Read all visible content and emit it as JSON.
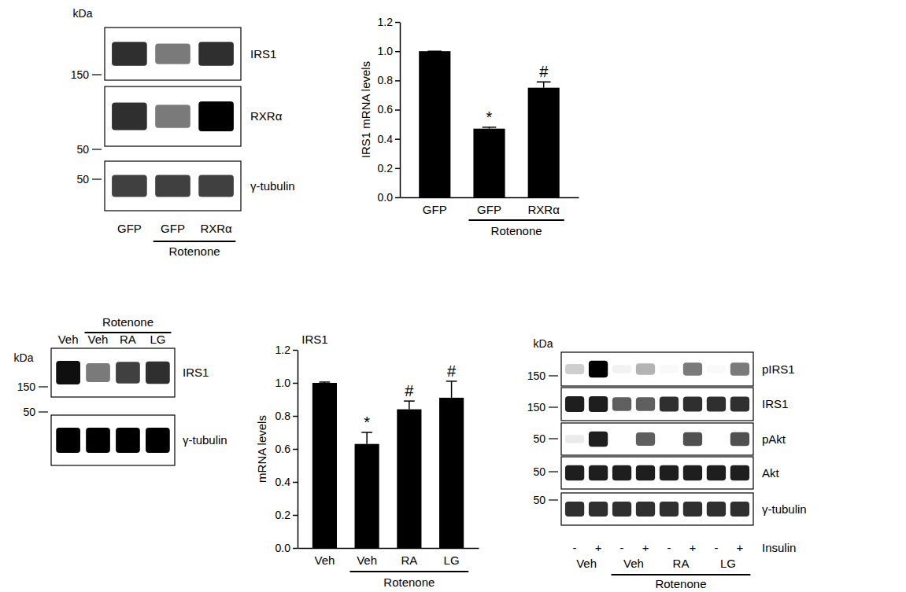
{
  "chart_data": [
    {
      "type": "bar",
      "y_label": "IRS1 mRNA levels",
      "categories": [
        "GFP",
        "GFP",
        "RXRα"
      ],
      "values": [
        1.0,
        0.47,
        0.75
      ],
      "errors": [
        0,
        0.01,
        0.04
      ],
      "color": "#000000",
      "ylim": [
        0,
        1.2
      ],
      "yticks": [
        {
          "value": 0,
          "label": "0.0"
        },
        0.2,
        0.4,
        0.6,
        0.8,
        {
          "value": 1,
          "label": "1.0"
        },
        1.2
      ],
      "annotations": [
        {
          "index": 1,
          "text": "*"
        },
        {
          "index": 2,
          "text": "#"
        }
      ],
      "groups": [
        {
          "label": "Rotenone",
          "start": 1,
          "end": 2
        }
      ]
    },
    {
      "type": "bar",
      "title": "IRS1",
      "y_label": "mRNA levels",
      "categories": [
        "Veh",
        "Veh",
        "RA",
        "LG"
      ],
      "values": [
        1.0,
        0.63,
        0.84,
        0.91
      ],
      "errors": [
        0.005,
        0.07,
        0.05,
        0.1
      ],
      "color": "#000000",
      "ylim": [
        0,
        1.2
      ],
      "yticks": [
        {
          "value": 0,
          "label": "0.0"
        },
        0.2,
        0.4,
        0.6,
        0.8,
        {
          "value": 1,
          "label": "1.0"
        },
        1.2
      ],
      "annotations": [
        {
          "index": 1,
          "text": "*"
        },
        {
          "index": 2,
          "text": "#"
        },
        {
          "index": 3,
          "text": "#"
        }
      ],
      "groups": [
        {
          "label": "Rotenone",
          "start": 1,
          "end": 3
        }
      ]
    }
  ],
  "blots": [
    {
      "kda_label": "kDa",
      "lanes": [
        "GFP",
        "GFP",
        "RXRα"
      ],
      "rows": [
        {
          "name": "IRS1",
          "marker": 150,
          "bands": [
            0.85,
            0.6,
            0.85
          ]
        },
        {
          "name": "RXRα",
          "marker": 50,
          "bands": [
            0.85,
            0.6,
            1.0
          ]
        },
        {
          "name": "γ-tubulin",
          "marker": 50,
          "bands": [
            0.8,
            0.8,
            0.8
          ]
        }
      ],
      "groups": [
        {
          "label": "Rotenone",
          "start": 1,
          "end": 2
        }
      ]
    },
    {
      "kda_label": "kDa",
      "lanes": [
        "Veh",
        "Veh",
        "RA",
        "LG"
      ],
      "rows": [
        {
          "name": "IRS1",
          "marker": 150,
          "bands": [
            0.95,
            0.6,
            0.8,
            0.85
          ]
        },
        {
          "name": "γ-tubulin",
          "marker": 50,
          "bands": [
            1.0,
            1.0,
            1.0,
            1.0
          ]
        }
      ],
      "groups": [
        {
          "label": "Rotenone",
          "start": 1,
          "end": 3
        }
      ]
    },
    {
      "kda_label": "kDa",
      "lanes_label": "Insulin",
      "lanes": [
        "-",
        "+",
        "-",
        "+",
        "-",
        "+",
        "-",
        "+"
      ],
      "rows": [
        {
          "name": "pIRS1",
          "marker": 150,
          "bands": [
            0.3,
            1.0,
            0.1,
            0.4,
            0.05,
            0.6,
            0.05,
            0.6
          ]
        },
        {
          "name": "IRS1",
          "marker": 150,
          "bands": [
            0.9,
            0.9,
            0.7,
            0.7,
            0.85,
            0.85,
            0.85,
            0.85
          ]
        },
        {
          "name": "pAkt",
          "marker": 50,
          "bands": [
            0.15,
            0.9,
            0.0,
            0.7,
            0.0,
            0.75,
            0.0,
            0.75
          ]
        },
        {
          "name": "Akt",
          "marker": 50,
          "bands": [
            0.9,
            0.9,
            0.9,
            0.9,
            0.9,
            0.9,
            0.9,
            0.9
          ]
        },
        {
          "name": "γ-tubulin",
          "marker": 50,
          "bands": [
            0.85,
            0.85,
            0.85,
            0.85,
            0.85,
            0.85,
            0.85,
            0.85
          ]
        }
      ],
      "lane_groups": [
        {
          "label": "Veh",
          "start": 0,
          "end": 1
        },
        {
          "label": "Veh",
          "start": 2,
          "end": 3
        },
        {
          "label": "RA",
          "start": 4,
          "end": 5
        },
        {
          "label": "LG",
          "start": 6,
          "end": 7
        }
      ],
      "groups": [
        {
          "label": "Rotenone",
          "start": 2,
          "end": 7
        }
      ]
    }
  ]
}
